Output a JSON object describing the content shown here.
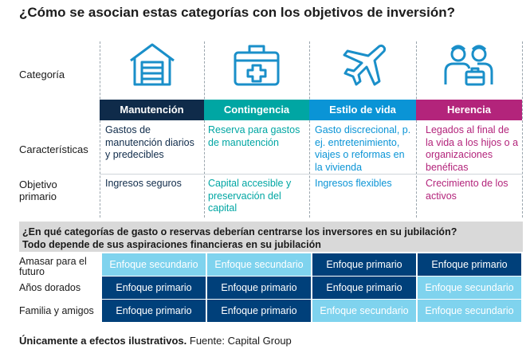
{
  "title": "¿Cómo se asocian estas categorías con los objetivos de inversión?",
  "row_labels": {
    "categoria": "Categoría",
    "caracteristicas": "Características",
    "objetivo": "Objetivo primario"
  },
  "colors": {
    "manutencion": "#0f2b4a",
    "contingencia": "#00a6a3",
    "estilo": "#0a94d6",
    "herencia": "#b3247b",
    "primary": "#00407a",
    "secondary": "#7fd3ee",
    "icon": "#1a8fc9"
  },
  "columns": [
    {
      "name": "Manutención",
      "icon": "garage-house-icon",
      "characteristics": "Gastos de manutención diarios y predecibles",
      "objective": "Ingresos seguros"
    },
    {
      "name": "Contingencia",
      "icon": "first-aid-kit-icon",
      "characteristics": "Reserva para gastos de manutención",
      "objective": "Capital accesible y preservación del capital"
    },
    {
      "name": "Estilo de vida",
      "icon": "airplane-icon",
      "characteristics": "Gasto discrecional, p. ej. entretenimiento, viajes o reformas en la vivienda",
      "objective": "Ingresos flexibles"
    },
    {
      "name": "Herencia",
      "icon": "family-briefcase-icon",
      "characteristics": "Legados al final de la vida a los hijos o a organizaciones benéficas",
      "objective": "Crecimiento de los activos"
    }
  ],
  "banner": {
    "line1": "¿En qué categorías de gasto o reservas deberían centrarse los inversores en su jubilación?",
    "line2": "Todo depende de sus aspiraciones financieras en su jubilación"
  },
  "grid": [
    {
      "label": "Amasar para el futuro",
      "cells": [
        {
          "text": "Enfoque secundario",
          "level": "secondary"
        },
        {
          "text": "Enfoque secundario",
          "level": "secondary"
        },
        {
          "text": "Enfoque primario",
          "level": "primary"
        },
        {
          "text": "Enfoque primario",
          "level": "primary"
        }
      ]
    },
    {
      "label": "Años dorados",
      "cells": [
        {
          "text": "Enfoque primario",
          "level": "primary"
        },
        {
          "text": "Enfoque primario",
          "level": "primary"
        },
        {
          "text": "Enfoque primario",
          "level": "primary"
        },
        {
          "text": "Enfoque secundario",
          "level": "secondary"
        }
      ]
    },
    {
      "label": "Familia y amigos",
      "cells": [
        {
          "text": "Enfoque primario",
          "level": "primary"
        },
        {
          "text": "Enfoque primario",
          "level": "primary"
        },
        {
          "text": "Enfoque secundario",
          "level": "secondary"
        },
        {
          "text": "Enfoque secundario",
          "level": "secondary"
        }
      ]
    }
  ],
  "footer": {
    "bold": "Únicamente a efectos ilustrativos.",
    "source": "Fuente: Capital Group"
  }
}
